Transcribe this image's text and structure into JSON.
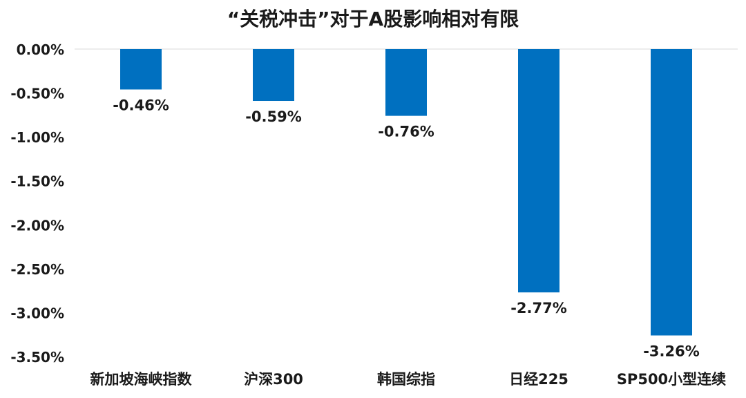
{
  "chart_data": {
    "type": "bar",
    "title": "“关税冲击”对于A股影响相对有限",
    "categories": [
      "新加坡海峡指数",
      "沪深300",
      "韩国综指",
      "日经225",
      "SP500小型连续"
    ],
    "values": [
      -0.46,
      -0.59,
      -0.76,
      -2.77,
      -3.26
    ],
    "data_labels": [
      "-0.46%",
      "-0.59%",
      "-0.76%",
      "-2.77%",
      "-3.26%"
    ],
    "ylim": [
      -3.5,
      0
    ],
    "y_ticks": [
      0,
      -0.5,
      -1.0,
      -1.5,
      -2.0,
      -2.5,
      -3.0,
      -3.5
    ],
    "y_tick_labels": [
      "0.00%",
      "-0.50%",
      "-1.00%",
      "-1.50%",
      "-2.00%",
      "-2.50%",
      "-3.00%",
      "-3.50%"
    ],
    "bar_color": "#0070C0",
    "grid": false,
    "xlabel": "",
    "ylabel": ""
  }
}
